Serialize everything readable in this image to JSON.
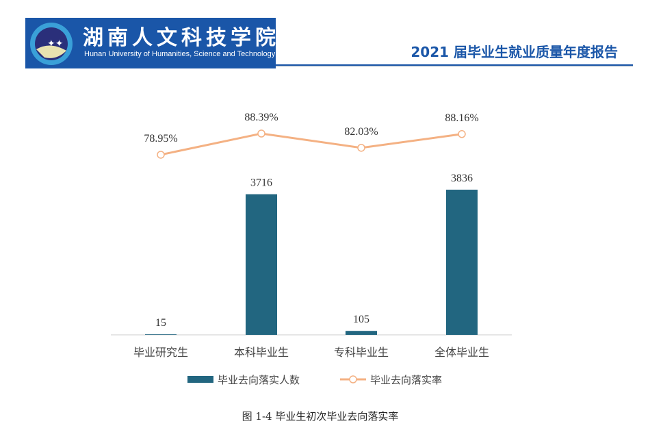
{
  "header": {
    "cn_name": "湖南人文科技学院",
    "en_name": "Hunan University of Humanities, Science and Technology",
    "report_title": "2021 届毕业生就业质量年度报告"
  },
  "chart_data": {
    "type": "bar+line",
    "categories": [
      "毕业研究生",
      "本科毕业生",
      "专科毕业生",
      "全体毕业生"
    ],
    "series": [
      {
        "name": "毕业去向落实人数",
        "type": "bar",
        "color": "#226680",
        "values": [
          15,
          3716,
          105,
          3836
        ],
        "labels": [
          "15",
          "3716",
          "105",
          "3836"
        ]
      },
      {
        "name": "毕业去向落实率",
        "type": "line",
        "color": "#f4b183",
        "values": [
          78.95,
          88.39,
          82.03,
          88.16
        ],
        "labels": [
          "78.95%",
          "88.39%",
          "82.03%",
          "88.16%"
        ]
      }
    ],
    "legend": "bottom"
  },
  "caption": "图 1-4  毕业生初次毕业去向落实率"
}
